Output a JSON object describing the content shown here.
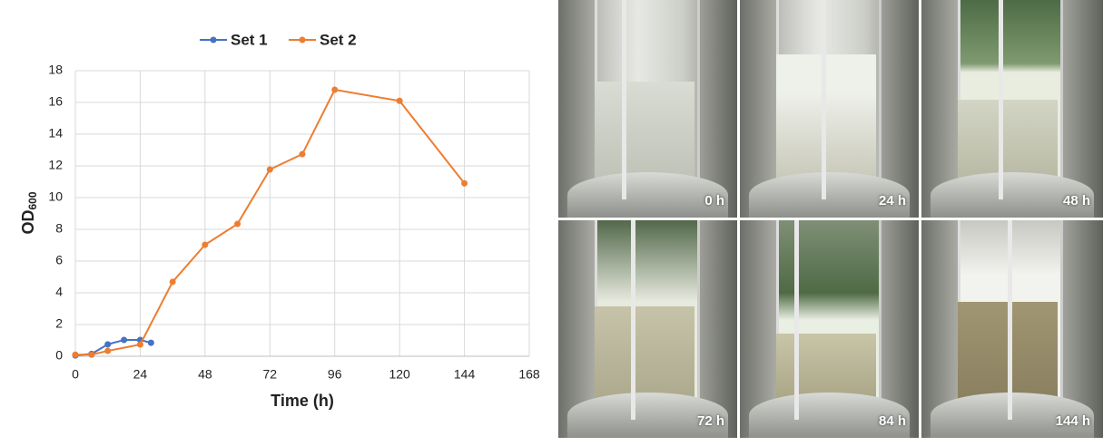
{
  "chart_data": {
    "type": "line",
    "x_label": "Time (h)",
    "y_label": {
      "text": "OD",
      "subscript": "600"
    },
    "xlim": [
      0,
      168
    ],
    "xticks": [
      0,
      24,
      48,
      72,
      96,
      120,
      144,
      168
    ],
    "ylim": [
      0,
      18
    ],
    "yticks": [
      0,
      2,
      4,
      6,
      8,
      10,
      12,
      14,
      16,
      18
    ],
    "grid": true,
    "legend": "top",
    "series": [
      {
        "name": "Set 1",
        "color": "#4472c4",
        "x": [
          0,
          6,
          12,
          18,
          24,
          28
        ],
        "values": [
          0.05,
          0.15,
          0.75,
          1.03,
          1.03,
          0.85
        ]
      },
      {
        "name": "Set 2",
        "color": "#ed7d31",
        "x": [
          0,
          6,
          12,
          24,
          36,
          48,
          60,
          72,
          84,
          96,
          120,
          144
        ],
        "values": [
          0.1,
          0.1,
          0.34,
          0.74,
          4.69,
          7.03,
          8.34,
          11.77,
          12.74,
          16.8,
          16.1,
          10.9
        ]
      }
    ]
  },
  "photos": {
    "labels": [
      "0 h",
      "24 h",
      "48 h",
      "72 h",
      "84 h",
      "144 h"
    ]
  }
}
